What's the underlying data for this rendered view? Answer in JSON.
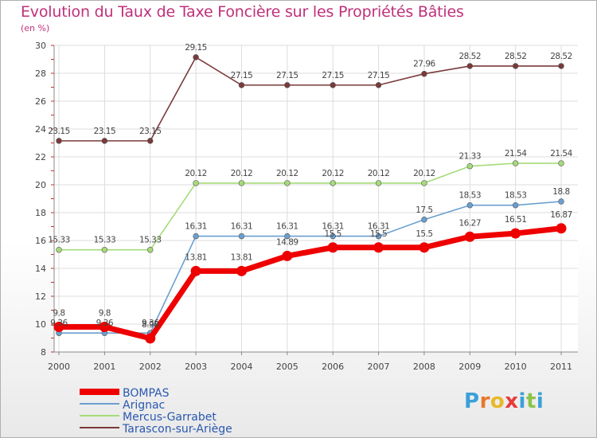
{
  "title": "Evolution du Taux de Taxe Foncière sur les Propriétés Bâties",
  "subtitle": "(en %)",
  "logo": {
    "text": "Proxiti",
    "letters": [
      "P",
      "r",
      "o",
      "x",
      "i",
      "t",
      "i"
    ],
    "colors": [
      "#3aa0d8",
      "#e8772a",
      "#e8b82a",
      "#e83a3a",
      "#3aa0d8",
      "#8bc34a",
      "#3aa0d8"
    ]
  },
  "chart_data": {
    "type": "line",
    "title": "Evolution du Taux de Taxe Foncière sur les Propriétés Bâties",
    "ylabel": "(en %)",
    "xlabel": "",
    "categories": [
      "2000",
      "2001",
      "2002",
      "2003",
      "2004",
      "2005",
      "2006",
      "2007",
      "2008",
      "2009",
      "2010",
      "2011"
    ],
    "ylim": [
      8,
      30
    ],
    "yticks": [
      "8",
      "10",
      "12",
      "14",
      "16",
      "18",
      "20",
      "22",
      "24",
      "26",
      "28",
      "30"
    ],
    "grid": true,
    "legend": "bottom-left",
    "series": [
      {
        "name": "BOMPAS",
        "color": "#ee0000",
        "values": [
          9.8,
          9.8,
          8.98,
          13.81,
          13.81,
          14.89,
          15.5,
          15.5,
          15.5,
          16.27,
          16.51,
          16.87
        ],
        "labels": [
          "9.8",
          "9.8",
          "8.98",
          "13.81",
          "13.81",
          "14.89",
          "15.5",
          "15.5",
          "15.5",
          "16.27",
          "16.51",
          "16.87"
        ]
      },
      {
        "name": "Arignac",
        "color": "#6a9fd0",
        "values": [
          9.36,
          9.36,
          9.36,
          16.31,
          16.31,
          16.31,
          16.31,
          16.31,
          17.5,
          18.53,
          18.53,
          18.8
        ],
        "labels": [
          "9.36",
          "9.36",
          "9.36",
          "16.31",
          "16.31",
          "16.31",
          "16.31",
          "16.31",
          "17.5",
          "18.53",
          "18.53",
          "18.8"
        ]
      },
      {
        "name": "Mercus-Garrabet",
        "color": "#a6db7a",
        "values": [
          15.33,
          15.33,
          15.33,
          20.12,
          20.12,
          20.12,
          20.12,
          20.12,
          20.12,
          21.33,
          21.54,
          21.54
        ],
        "labels": [
          "15.33",
          "15.33",
          "15.33",
          "20.12",
          "20.12",
          "20.12",
          "20.12",
          "20.12",
          "20.12",
          "21.33",
          "21.54",
          "21.54"
        ]
      },
      {
        "name": "Tarascon-sur-Ariège",
        "color": "#7a3a3a",
        "values": [
          23.15,
          23.15,
          23.15,
          29.15,
          27.15,
          27.15,
          27.15,
          27.15,
          27.96,
          28.52,
          28.52,
          28.52
        ],
        "labels": [
          "23.15",
          "23.15",
          "23.15",
          "29.15",
          "27.15",
          "27.15",
          "27.15",
          "27.15",
          "27.96",
          "28.52",
          "28.52",
          "28.52"
        ]
      }
    ]
  }
}
